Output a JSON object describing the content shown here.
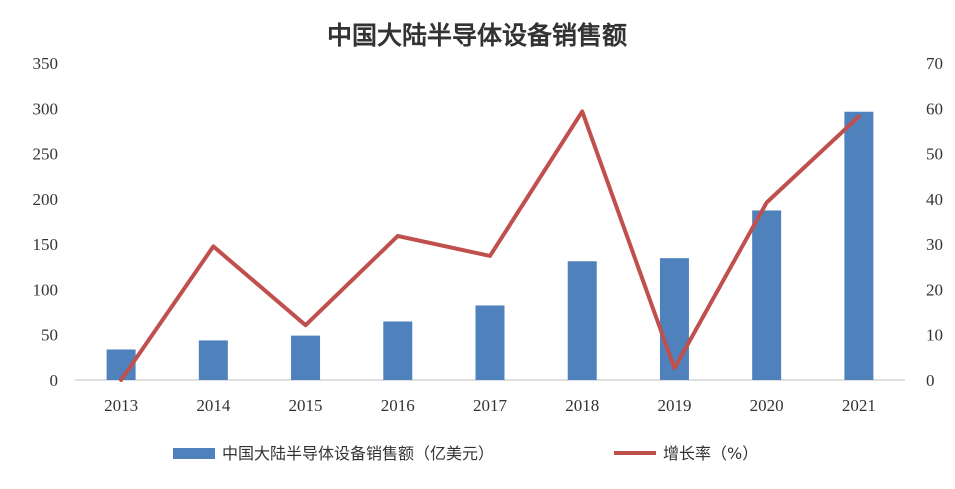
{
  "chart_data": {
    "type": "bar",
    "title": "中国大陆半导体设备销售额",
    "categories": [
      "2013",
      "2014",
      "2015",
      "2016",
      "2017",
      "2018",
      "2019",
      "2020",
      "2021"
    ],
    "series": [
      {
        "name": "中国大陆半导体设备销售额（亿美元）",
        "type": "bar",
        "axis": "left",
        "color": "#4f81bd",
        "values": [
          33.7,
          43.7,
          49.0,
          64.6,
          82.3,
          131.1,
          134.5,
          187.2,
          296.2
        ]
      },
      {
        "name": "增长率（%）",
        "type": "line",
        "axis": "right",
        "color": "#c0504d",
        "values": [
          0,
          29.5,
          12.1,
          31.8,
          27.4,
          59.3,
          2.6,
          39.2,
          58.2
        ]
      }
    ],
    "y_left": {
      "min": 0,
      "max": 350,
      "ticks": [
        "0",
        "50",
        "100",
        "150",
        "200",
        "250",
        "300",
        "350"
      ]
    },
    "y_right": {
      "min": 0,
      "max": 70,
      "ticks": [
        "0",
        "10",
        "20",
        "30",
        "40",
        "50",
        "60",
        "70"
      ]
    },
    "grid": false,
    "legend_position": "bottom"
  }
}
